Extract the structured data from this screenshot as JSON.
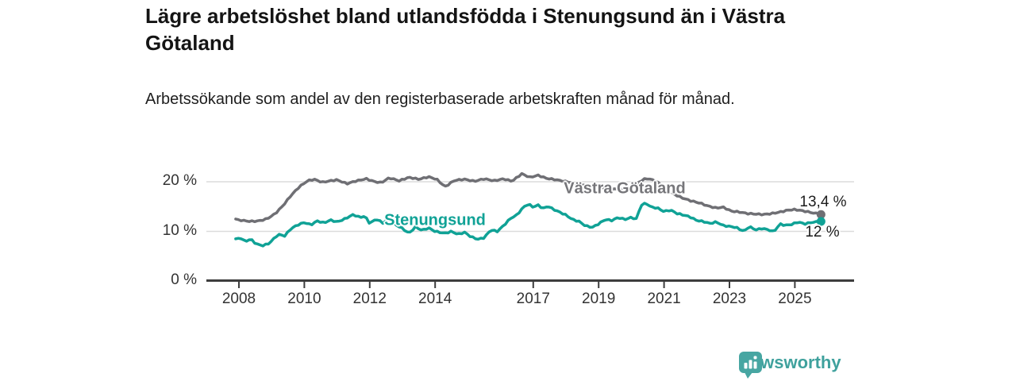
{
  "header": {
    "title": "Lägre arbetslöshet bland utlandsfödda i Stenungsund än i Västra Götaland",
    "subtitle": "Arbetssökande som andel av den registerbaserade arbetskraften månad för månad."
  },
  "branding": {
    "logo_text": "Newsworthy",
    "logo_icon": "bar-chart-speech-bubble",
    "logo_color": "#47a6a2"
  },
  "chart_data": {
    "type": "line",
    "unit": "%",
    "grid": true,
    "legend_position": "inline-labels",
    "x_axis": {
      "ticks": [
        2008,
        2010,
        2012,
        2014,
        2017,
        2019,
        2021,
        2023,
        2025
      ],
      "tick_labels": [
        "2008",
        "2010",
        "2012",
        "2014",
        "2017",
        "2019",
        "2021",
        "2023",
        "2025"
      ],
      "range_years": [
        2007.0,
        2026.6
      ]
    },
    "y_axis": {
      "ticks": [
        0,
        10,
        20
      ],
      "tick_labels": [
        "0 %",
        "10 %",
        "20 %"
      ],
      "range": [
        0,
        24
      ]
    },
    "series": [
      {
        "name": "Västra Götaland",
        "color": "#6f6f74",
        "end_value": 13.4,
        "end_label": "13,4 %",
        "points": [
          [
            2007.9,
            12.5
          ],
          [
            2008.1,
            12.2
          ],
          [
            2008.35,
            12.0
          ],
          [
            2008.6,
            12.1
          ],
          [
            2008.85,
            12.5
          ],
          [
            2009.1,
            13.5
          ],
          [
            2009.35,
            15.2
          ],
          [
            2009.6,
            17.3
          ],
          [
            2009.85,
            19.0
          ],
          [
            2010.1,
            20.2
          ],
          [
            2010.3,
            20.5
          ],
          [
            2010.55,
            19.9
          ],
          [
            2010.8,
            20.2
          ],
          [
            2011.0,
            20.4
          ],
          [
            2011.3,
            19.6
          ],
          [
            2011.6,
            20.2
          ],
          [
            2011.9,
            20.6
          ],
          [
            2012.1,
            20.1
          ],
          [
            2012.35,
            19.8
          ],
          [
            2012.6,
            20.8
          ],
          [
            2012.9,
            20.2
          ],
          [
            2013.2,
            20.9
          ],
          [
            2013.5,
            20.5
          ],
          [
            2013.8,
            21.0
          ],
          [
            2014.05,
            20.5
          ],
          [
            2014.3,
            19.0
          ],
          [
            2014.6,
            20.3
          ],
          [
            2014.9,
            20.5
          ],
          [
            2015.2,
            20.1
          ],
          [
            2015.5,
            20.6
          ],
          [
            2015.8,
            20.2
          ],
          [
            2016.1,
            20.6
          ],
          [
            2016.35,
            20.1
          ],
          [
            2016.65,
            21.6
          ],
          [
            2016.9,
            20.9
          ],
          [
            2017.15,
            21.3
          ],
          [
            2017.4,
            20.7
          ],
          [
            2017.7,
            20.4
          ],
          [
            2018.2,
            19.8
          ],
          [
            2018.7,
            19.2
          ],
          [
            2019.2,
            18.7
          ],
          [
            2019.7,
            18.4
          ],
          [
            2020.0,
            18.9
          ],
          [
            2020.25,
            20.0
          ],
          [
            2020.45,
            20.7
          ],
          [
            2020.7,
            20.3
          ],
          [
            2021.0,
            19.0
          ],
          [
            2021.25,
            17.7
          ],
          [
            2021.5,
            16.9
          ],
          [
            2021.8,
            16.2
          ],
          [
            2022.1,
            15.7
          ],
          [
            2022.35,
            15.1
          ],
          [
            2022.6,
            14.7
          ],
          [
            2022.8,
            14.9
          ],
          [
            2023.05,
            14.1
          ],
          [
            2023.3,
            13.9
          ],
          [
            2023.55,
            13.6
          ],
          [
            2023.8,
            13.5
          ],
          [
            2024.05,
            13.4
          ],
          [
            2024.3,
            13.6
          ],
          [
            2024.55,
            13.9
          ],
          [
            2024.8,
            14.3
          ],
          [
            2025.0,
            14.4
          ],
          [
            2025.2,
            14.2
          ],
          [
            2025.5,
            13.8
          ],
          [
            2025.8,
            13.4
          ]
        ]
      },
      {
        "name": "Stenungsund",
        "color": "#10a296",
        "end_value": 12.0,
        "end_label": "12 %",
        "points": [
          [
            2007.9,
            8.5
          ],
          [
            2008.05,
            8.7
          ],
          [
            2008.2,
            7.9
          ],
          [
            2008.35,
            8.5
          ],
          [
            2008.5,
            7.6
          ],
          [
            2008.7,
            7.1
          ],
          [
            2008.9,
            7.5
          ],
          [
            2009.05,
            8.4
          ],
          [
            2009.2,
            9.4
          ],
          [
            2009.4,
            9.1
          ],
          [
            2009.6,
            10.6
          ],
          [
            2009.8,
            11.3
          ],
          [
            2010.0,
            11.8
          ],
          [
            2010.2,
            11.3
          ],
          [
            2010.4,
            12.1
          ],
          [
            2010.6,
            11.7
          ],
          [
            2010.8,
            12.3
          ],
          [
            2011.0,
            11.9
          ],
          [
            2011.2,
            12.4
          ],
          [
            2011.5,
            13.4
          ],
          [
            2011.7,
            12.8
          ],
          [
            2011.85,
            13.1
          ],
          [
            2012.0,
            11.6
          ],
          [
            2012.2,
            12.5
          ],
          [
            2012.4,
            11.7
          ],
          [
            2012.6,
            12.6
          ],
          [
            2012.8,
            11.3
          ],
          [
            2013.0,
            10.6
          ],
          [
            2013.2,
            9.6
          ],
          [
            2013.4,
            10.9
          ],
          [
            2013.6,
            10.2
          ],
          [
            2013.8,
            10.7
          ],
          [
            2014.0,
            10.0
          ],
          [
            2014.3,
            9.6
          ],
          [
            2014.5,
            10.0
          ],
          [
            2014.7,
            9.4
          ],
          [
            2014.9,
            9.8
          ],
          [
            2015.1,
            8.9
          ],
          [
            2015.3,
            8.4
          ],
          [
            2015.5,
            8.7
          ],
          [
            2015.7,
            10.3
          ],
          [
            2015.9,
            10.0
          ],
          [
            2016.1,
            11.2
          ],
          [
            2016.3,
            12.6
          ],
          [
            2016.5,
            13.3
          ],
          [
            2016.7,
            14.9
          ],
          [
            2016.85,
            15.5
          ],
          [
            2017.0,
            14.9
          ],
          [
            2017.15,
            15.3
          ],
          [
            2017.3,
            14.6
          ],
          [
            2017.45,
            15.1
          ],
          [
            2017.6,
            14.5
          ],
          [
            2017.8,
            13.9
          ],
          [
            2018.0,
            13.3
          ],
          [
            2018.2,
            12.4
          ],
          [
            2018.4,
            12.0
          ],
          [
            2018.6,
            11.1
          ],
          [
            2018.8,
            10.8
          ],
          [
            2019.0,
            11.5
          ],
          [
            2019.2,
            12.4
          ],
          [
            2019.4,
            12.2
          ],
          [
            2019.6,
            12.8
          ],
          [
            2019.8,
            12.4
          ],
          [
            2020.0,
            12.8
          ],
          [
            2020.15,
            12.5
          ],
          [
            2020.3,
            15.3
          ],
          [
            2020.45,
            15.7
          ],
          [
            2020.6,
            14.9
          ],
          [
            2020.8,
            14.7
          ],
          [
            2021.0,
            14.0
          ],
          [
            2021.2,
            14.3
          ],
          [
            2021.4,
            13.6
          ],
          [
            2021.6,
            13.3
          ],
          [
            2021.8,
            12.9
          ],
          [
            2022.0,
            12.2
          ],
          [
            2022.2,
            12.0
          ],
          [
            2022.4,
            11.6
          ],
          [
            2022.6,
            11.9
          ],
          [
            2022.8,
            11.2
          ],
          [
            2023.0,
            11.0
          ],
          [
            2023.2,
            10.8
          ],
          [
            2023.45,
            10.0
          ],
          [
            2023.6,
            11.0
          ],
          [
            2023.8,
            10.3
          ],
          [
            2024.0,
            10.6
          ],
          [
            2024.2,
            10.3
          ],
          [
            2024.35,
            9.9
          ],
          [
            2024.55,
            11.5
          ],
          [
            2024.7,
            11.2
          ],
          [
            2024.9,
            11.4
          ],
          [
            2025.1,
            11.9
          ],
          [
            2025.3,
            11.5
          ],
          [
            2025.5,
            11.8
          ],
          [
            2025.8,
            12.0
          ]
        ]
      }
    ]
  },
  "style": {
    "axis_color": "#3d3d3d",
    "grid_color": "#dcdcdc",
    "tick_label_color": "#333333"
  }
}
